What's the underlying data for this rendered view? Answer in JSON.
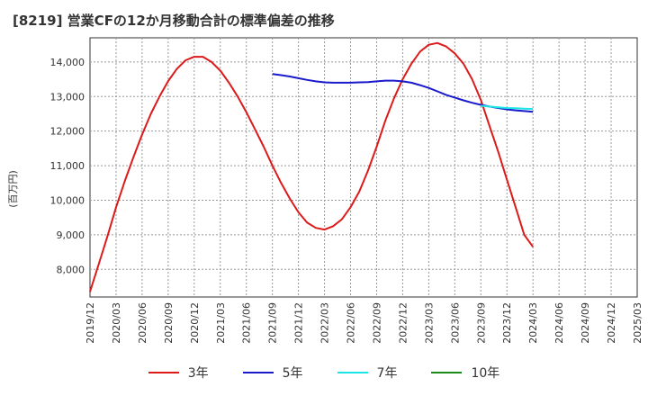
{
  "chart_data": {
    "type": "line",
    "title": "[8219]  営業CFの12か月移動合計の標準偏差の推移",
    "ylabel": "(百万円)",
    "xlabel": "",
    "ylim": [
      7200,
      14700
    ],
    "yticks": [
      8000,
      9000,
      10000,
      11000,
      12000,
      13000,
      14000
    ],
    "ytick_labels": [
      "8,000",
      "9,000",
      "10,000",
      "11,000",
      "12,000",
      "13,000",
      "14,000"
    ],
    "xticks": [
      "2019/12",
      "2020/03",
      "2020/06",
      "2020/09",
      "2020/12",
      "2021/03",
      "2021/06",
      "2021/09",
      "2021/12",
      "2022/03",
      "2022/06",
      "2022/09",
      "2022/12",
      "2023/03",
      "2023/06",
      "2023/09",
      "2023/12",
      "2024/03",
      "2024/06",
      "2024/09",
      "2024/12",
      "2025/03"
    ],
    "grid": true,
    "legend_position": "bottom",
    "series": [
      {
        "name": "3年",
        "color": "#dd1a1a",
        "points": [
          [
            "2019/12",
            7350
          ],
          [
            "2020/01",
            8150
          ],
          [
            "2020/02",
            8950
          ],
          [
            "2020/03",
            9800
          ],
          [
            "2020/04",
            10550
          ],
          [
            "2020/05",
            11250
          ],
          [
            "2020/06",
            11900
          ],
          [
            "2020/07",
            12500
          ],
          [
            "2020/08",
            13000
          ],
          [
            "2020/09",
            13450
          ],
          [
            "2020/10",
            13800
          ],
          [
            "2020/11",
            14050
          ],
          [
            "2020/12",
            14150
          ],
          [
            "2021/01",
            14150
          ],
          [
            "2021/02",
            14000
          ],
          [
            "2021/03",
            13750
          ],
          [
            "2021/04",
            13400
          ],
          [
            "2021/05",
            13000
          ],
          [
            "2021/06",
            12550
          ],
          [
            "2021/07",
            12050
          ],
          [
            "2021/08",
            11550
          ],
          [
            "2021/09",
            11000
          ],
          [
            "2021/10",
            10500
          ],
          [
            "2021/11",
            10050
          ],
          [
            "2021/12",
            9650
          ],
          [
            "2022/01",
            9350
          ],
          [
            "2022/02",
            9200
          ],
          [
            "2022/03",
            9150
          ],
          [
            "2022/04",
            9250
          ],
          [
            "2022/05",
            9450
          ],
          [
            "2022/06",
            9800
          ],
          [
            "2022/07",
            10250
          ],
          [
            "2022/08",
            10850
          ],
          [
            "2022/09",
            11550
          ],
          [
            "2022/10",
            12300
          ],
          [
            "2022/11",
            12950
          ],
          [
            "2022/12",
            13500
          ],
          [
            "2023/01",
            13950
          ],
          [
            "2023/02",
            14300
          ],
          [
            "2023/03",
            14500
          ],
          [
            "2023/04",
            14550
          ],
          [
            "2023/05",
            14450
          ],
          [
            "2023/06",
            14250
          ],
          [
            "2023/07",
            13950
          ],
          [
            "2023/08",
            13500
          ],
          [
            "2023/09",
            12900
          ],
          [
            "2023/10",
            12150
          ],
          [
            "2023/11",
            11400
          ],
          [
            "2023/12",
            10600
          ],
          [
            "2024/01",
            9800
          ],
          [
            "2024/02",
            9000
          ],
          [
            "2024/03",
            8650
          ]
        ]
      },
      {
        "name": "5年",
        "color": "#1a1acc",
        "points": [
          [
            "2021/09",
            13650
          ],
          [
            "2021/10",
            13620
          ],
          [
            "2021/11",
            13580
          ],
          [
            "2021/12",
            13530
          ],
          [
            "2022/01",
            13480
          ],
          [
            "2022/02",
            13440
          ],
          [
            "2022/03",
            13410
          ],
          [
            "2022/04",
            13400
          ],
          [
            "2022/05",
            13400
          ],
          [
            "2022/06",
            13400
          ],
          [
            "2022/07",
            13410
          ],
          [
            "2022/08",
            13420
          ],
          [
            "2022/09",
            13440
          ],
          [
            "2022/10",
            13460
          ],
          [
            "2022/11",
            13460
          ],
          [
            "2022/12",
            13440
          ],
          [
            "2023/01",
            13400
          ],
          [
            "2023/02",
            13330
          ],
          [
            "2023/03",
            13250
          ],
          [
            "2023/04",
            13150
          ],
          [
            "2023/05",
            13050
          ],
          [
            "2023/06",
            12970
          ],
          [
            "2023/07",
            12890
          ],
          [
            "2023/08",
            12820
          ],
          [
            "2023/09",
            12760
          ],
          [
            "2023/10",
            12710
          ],
          [
            "2023/11",
            12670
          ],
          [
            "2023/12",
            12630
          ],
          [
            "2024/01",
            12600
          ],
          [
            "2024/02",
            12580
          ],
          [
            "2024/03",
            12560
          ]
        ]
      },
      {
        "name": "7年",
        "color": "#1ae6e6",
        "points": [
          [
            "2023/09",
            12730
          ],
          [
            "2023/10",
            12710
          ],
          [
            "2023/11",
            12690
          ],
          [
            "2023/12",
            12670
          ],
          [
            "2024/01",
            12660
          ],
          [
            "2024/02",
            12650
          ],
          [
            "2024/03",
            12640
          ]
        ]
      },
      {
        "name": "10年",
        "color": "#1a8c1a",
        "points": []
      }
    ]
  }
}
